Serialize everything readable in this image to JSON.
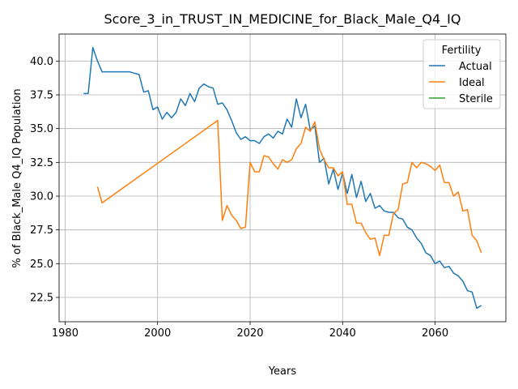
{
  "chart_data": {
    "type": "line",
    "title": "Score_3_in_TRUST_IN_MEDICINE_for_Black_Male_Q4_IQ",
    "xlabel": "Years",
    "ylabel": "% of Black_Male Q4_IQ Population",
    "xlim": [
      1978.7,
      2075.3
    ],
    "ylim": [
      20.7,
      42.0
    ],
    "grid": true,
    "xticks": [
      1980,
      2000,
      2020,
      2040,
      2060
    ],
    "yticks": [
      22.5,
      25.0,
      27.5,
      30.0,
      32.5,
      35.0,
      37.5,
      40.0
    ],
    "xtick_labels": [
      "1980",
      "2000",
      "2020",
      "2040",
      "2060"
    ],
    "ytick_labels": [
      "22.5",
      "25.0",
      "27.5",
      "30.0",
      "32.5",
      "35.0",
      "37.5",
      "40.0"
    ],
    "legend": {
      "title": "Fertility",
      "position": "top-right",
      "entries": [
        "Actual",
        "Ideal",
        "Sterile"
      ]
    },
    "series": [
      {
        "name": "Actual",
        "color": "#1f77b4",
        "x": [
          1984,
          1985,
          1986,
          1987,
          1988,
          1989,
          1990,
          1991,
          1992,
          1993,
          1994,
          1995,
          1996,
          1997,
          1998,
          1999,
          2000,
          2001,
          2002,
          2003,
          2004,
          2005,
          2006,
          2007,
          2008,
          2009,
          2010,
          2011,
          2012,
          2013,
          2014,
          2015,
          2016,
          2017,
          2018,
          2019,
          2020,
          2021,
          2022,
          2023,
          2024,
          2025,
          2026,
          2027,
          2028,
          2029,
          2030,
          2031,
          2032,
          2033,
          2034,
          2035,
          2036,
          2037,
          2038,
          2039,
          2040,
          2041,
          2042,
          2043,
          2044,
          2045,
          2046,
          2047,
          2048,
          2049,
          2050,
          2051,
          2052,
          2053,
          2054,
          2055,
          2056,
          2057,
          2058,
          2059,
          2060,
          2061,
          2062,
          2063,
          2064,
          2065,
          2066,
          2067,
          2068,
          2069,
          2070
        ],
        "values": [
          37.6,
          37.6,
          41.0,
          40.0,
          39.2,
          39.2,
          39.2,
          39.2,
          39.2,
          39.2,
          39.2,
          39.1,
          39.0,
          37.7,
          37.8,
          36.4,
          36.6,
          35.7,
          36.2,
          35.8,
          36.2,
          37.2,
          36.7,
          37.6,
          37.0,
          38.0,
          38.3,
          38.1,
          38.0,
          36.8,
          36.9,
          36.4,
          35.6,
          34.7,
          34.2,
          34.4,
          34.1,
          34.1,
          33.9,
          34.4,
          34.6,
          34.3,
          34.8,
          34.6,
          35.7,
          35.1,
          37.2,
          35.8,
          36.8,
          34.9,
          35.2,
          32.5,
          32.8,
          30.9,
          32.0,
          30.5,
          31.7,
          30.2,
          31.6,
          29.9,
          31.1,
          29.6,
          30.2,
          29.1,
          29.3,
          28.9,
          28.8,
          28.8,
          28.4,
          28.3,
          27.7,
          27.5,
          26.9,
          26.5,
          25.8,
          25.6,
          25.0,
          25.2,
          24.7,
          24.8,
          24.3,
          24.1,
          23.7,
          23.0,
          22.9,
          21.7,
          21.9
        ]
      },
      {
        "name": "Ideal",
        "color": "#ff7f0e",
        "x": [
          1987,
          1988,
          2013,
          2014,
          2015,
          2016,
          2017,
          2018,
          2019,
          2020,
          2021,
          2022,
          2023,
          2024,
          2025,
          2026,
          2027,
          2028,
          2029,
          2030,
          2031,
          2032,
          2033,
          2034,
          2035,
          2036,
          2037,
          2038,
          2039,
          2040,
          2041,
          2042,
          2043,
          2044,
          2045,
          2046,
          2047,
          2048,
          2049,
          2050,
          2051,
          2052,
          2053,
          2054,
          2055,
          2056,
          2057,
          2058,
          2059,
          2060,
          2061,
          2062,
          2063,
          2064,
          2065,
          2066,
          2067,
          2068,
          2069,
          2070
        ],
        "values": [
          30.7,
          29.5,
          35.6,
          28.2,
          29.3,
          28.6,
          28.2,
          27.6,
          27.7,
          32.5,
          31.8,
          31.8,
          33.0,
          32.9,
          32.4,
          32.0,
          32.7,
          32.5,
          32.7,
          33.5,
          33.9,
          35.1,
          34.8,
          35.5,
          33.5,
          32.7,
          32.1,
          32.1,
          31.5,
          31.8,
          29.4,
          29.4,
          28.0,
          28.0,
          27.3,
          26.8,
          26.9,
          25.6,
          27.1,
          27.1,
          28.7,
          29.0,
          30.9,
          31.0,
          32.5,
          32.1,
          32.5,
          32.4,
          32.2,
          31.9,
          32.3,
          31.0,
          31.0,
          30.0,
          30.3,
          28.9,
          29.0,
          27.1,
          26.7,
          25.8
        ]
      },
      {
        "name": "Sterile",
        "color": "#2ca02c",
        "x": [],
        "values": []
      }
    ]
  }
}
